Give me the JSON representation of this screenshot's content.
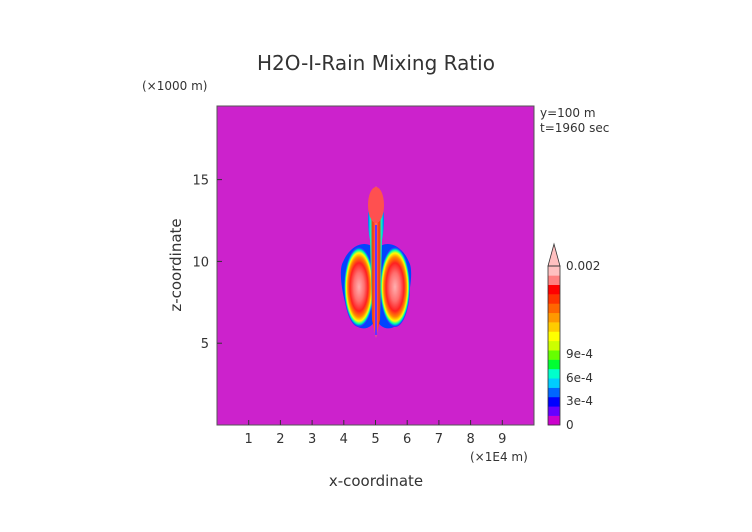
{
  "chart_data": {
    "type": "heatmap",
    "title": "H2O-I-Rain Mixing Ratio",
    "xlabel": "x-coordinate",
    "ylabel": "z-coordinate",
    "x_scale_note": "(×1E4 m)",
    "y_scale_note": "(×1000 m)",
    "xlim": [
      0,
      10
    ],
    "ylim": [
      0,
      19.5
    ],
    "x_ticks": [
      1,
      2,
      3,
      4,
      5,
      6,
      7,
      8,
      9
    ],
    "y_ticks": [
      5,
      10,
      15
    ],
    "annotations": [
      "y=100 m",
      "t=1960 sec"
    ],
    "background_value": 0,
    "plumes": [
      {
        "name": "left cell",
        "x_center": 4.45,
        "z_center": 9.2,
        "x_half_width": 0.45,
        "z_half_height": 2.6,
        "peak": "0.002"
      },
      {
        "name": "right cell",
        "x_center": 5.7,
        "z_center": 9.2,
        "x_half_width": 0.45,
        "z_half_height": 2.6,
        "peak": "0.002"
      },
      {
        "name": "central column",
        "x_center": 5.0,
        "z_bottom": 5.5,
        "z_top": 14.9,
        "peak": "0.002"
      }
    ],
    "colorbar": {
      "labels": [
        "0",
        "3e-4",
        "6e-4",
        "9e-4",
        "0.002"
      ],
      "colors": [
        "#cc00cc",
        "#6600ff",
        "#0000ff",
        "#0066ff",
        "#00ccff",
        "#00ffcc",
        "#00ff33",
        "#66ff00",
        "#ccff00",
        "#ffff00",
        "#ffcc00",
        "#ff9900",
        "#ff6600",
        "#ff3300",
        "#ff0000",
        "#ff8080",
        "#ffc0c0"
      ]
    }
  }
}
